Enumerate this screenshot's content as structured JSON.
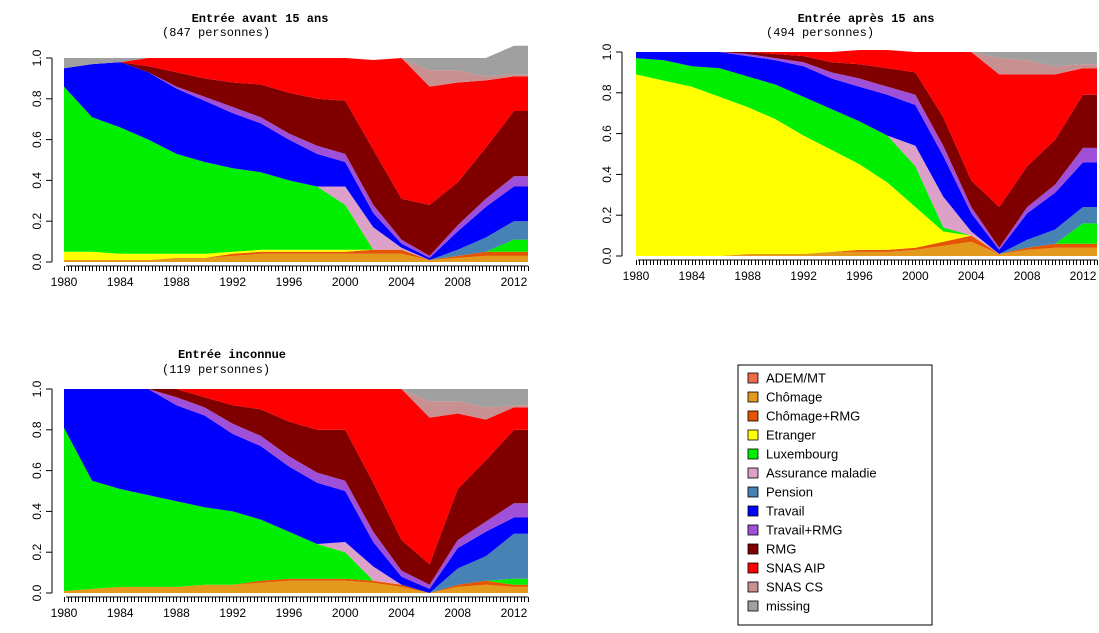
{
  "states": [
    "ADEM/MT",
    "Chômage",
    "Chômage+RMG",
    "Etranger",
    "Luxembourg",
    "Assurance maladie",
    "Pension",
    "Travail",
    "Travail+RMG",
    "RMG",
    "SNAS AIP",
    "SNAS CS",
    "missing"
  ],
  "colors": {
    "ADEM/MT": "#ee6a4a",
    "Chômage": "#e39a1c",
    "Chômage+RMG": "#e55500",
    "Etranger": "#ffff00",
    "Luxembourg": "#00ee00",
    "Assurance maladie": "#dda0c8",
    "Pension": "#4682b4",
    "Travail": "#0000ff",
    "Travail+RMG": "#a050d8",
    "RMG": "#800000",
    "SNAS AIP": "#ff0000",
    "SNAS CS": "#c89090",
    "missing": "#a0a0a0"
  },
  "legend": {
    "items": [
      {
        "label": "ADEM/MT",
        "color": "#ee6a4a"
      },
      {
        "label": "Chômage",
        "color": "#e39a1c"
      },
      {
        "label": "Chômage+RMG",
        "color": "#e55500"
      },
      {
        "label": "Etranger",
        "color": "#ffff00"
      },
      {
        "label": "Luxembourg",
        "color": "#00ee00"
      },
      {
        "label": "Assurance maladie",
        "color": "#dda0c8"
      },
      {
        "label": "Pension",
        "color": "#4682b4"
      },
      {
        "label": "Travail",
        "color": "#0000ff"
      },
      {
        "label": "Travail+RMG",
        "color": "#a050d8"
      },
      {
        "label": "RMG",
        "color": "#800000"
      },
      {
        "label": "SNAS AIP",
        "color": "#ff0000"
      },
      {
        "label": "SNAS CS",
        "color": "#c89090"
      },
      {
        "label": "missing",
        "color": "#a0a0a0"
      }
    ]
  },
  "chart_data": [
    {
      "type": "area",
      "title": "Entrée avant 15 ans",
      "subtitle": "(847 personnes)",
      "xlim": [
        1980,
        2013
      ],
      "ylim": [
        0,
        1
      ],
      "xticks": [
        1980,
        1984,
        1988,
        1992,
        1996,
        2000,
        2004,
        2008,
        2012
      ],
      "yticks": [
        "0.0",
        "0.2",
        "0.4",
        "0.6",
        "0.8",
        "1.0"
      ],
      "x": [
        1980,
        1982,
        1984,
        1986,
        1988,
        1990,
        1992,
        1994,
        1996,
        1998,
        2000,
        2002,
        2004,
        2006,
        2008,
        2010,
        2012,
        2013
      ],
      "series": [
        {
          "name": "ADEM/MT",
          "values": [
            0,
            0,
            0,
            0,
            0,
            0,
            0,
            0,
            0,
            0,
            0,
            0,
            0,
            0,
            0,
            0,
            0,
            0
          ]
        },
        {
          "name": "Chômage",
          "values": [
            0.01,
            0.01,
            0.01,
            0.01,
            0.02,
            0.02,
            0.03,
            0.04,
            0.04,
            0.04,
            0.04,
            0.04,
            0.04,
            0.01,
            0.02,
            0.03,
            0.03,
            0.03
          ]
        },
        {
          "name": "Chômage+RMG",
          "values": [
            0,
            0,
            0,
            0,
            0,
            0,
            0.01,
            0.01,
            0.01,
            0.01,
            0.01,
            0.02,
            0.02,
            0,
            0.01,
            0.02,
            0.02,
            0.02
          ]
        },
        {
          "name": "Etranger",
          "values": [
            0.04,
            0.04,
            0.03,
            0.03,
            0.02,
            0.02,
            0.01,
            0.01,
            0.01,
            0.01,
            0.01,
            0,
            0,
            0,
            0,
            0,
            0,
            0
          ]
        },
        {
          "name": "Luxembourg",
          "values": [
            0.81,
            0.66,
            0.62,
            0.56,
            0.49,
            0.45,
            0.41,
            0.38,
            0.34,
            0.31,
            0.22,
            0,
            0,
            0,
            0,
            0,
            0.06,
            0.06
          ]
        },
        {
          "name": "Assurance maladie",
          "values": [
            0,
            0,
            0,
            0,
            0,
            0,
            0,
            0,
            0,
            0,
            0.09,
            0.11,
            0.01,
            0,
            0,
            0,
            0,
            0
          ]
        },
        {
          "name": "Pension",
          "values": [
            0,
            0,
            0,
            0,
            0,
            0,
            0,
            0,
            0,
            0,
            0,
            0,
            0,
            0,
            0.03,
            0.07,
            0.09,
            0.09
          ]
        },
        {
          "name": "Travail",
          "values": [
            0.09,
            0.26,
            0.32,
            0.33,
            0.32,
            0.3,
            0.27,
            0.24,
            0.2,
            0.16,
            0.12,
            0.07,
            0.02,
            0.01,
            0.09,
            0.15,
            0.17,
            0.17
          ]
        },
        {
          "name": "Travail+RMG",
          "values": [
            0,
            0,
            0,
            0,
            0.01,
            0.02,
            0.03,
            0.03,
            0.03,
            0.04,
            0.04,
            0.04,
            0.02,
            0.01,
            0.03,
            0.04,
            0.05,
            0.05
          ]
        },
        {
          "name": "RMG",
          "values": [
            0,
            0,
            0,
            0.03,
            0.07,
            0.09,
            0.12,
            0.16,
            0.2,
            0.23,
            0.26,
            0.27,
            0.2,
            0.25,
            0.21,
            0.25,
            0.32,
            0.32
          ]
        },
        {
          "name": "SNAS AIP",
          "values": [
            0,
            0,
            0,
            0.04,
            0.07,
            0.1,
            0.12,
            0.13,
            0.17,
            0.2,
            0.21,
            0.44,
            0.69,
            0.58,
            0.49,
            0.33,
            0.17,
            0.17
          ]
        },
        {
          "name": "SNAS CS",
          "values": [
            0,
            0,
            0,
            0,
            0,
            0,
            0,
            0,
            0,
            0,
            0,
            0,
            0,
            0.08,
            0.06,
            0.02,
            0.01,
            0.01
          ]
        },
        {
          "name": "missing",
          "values": [
            0.05,
            0.03,
            0.02,
            0,
            0,
            0,
            0,
            0,
            0,
            0,
            0,
            0,
            0,
            0.06,
            0.06,
            0.09,
            0.14,
            0.14
          ]
        }
      ]
    },
    {
      "type": "area",
      "title": "Entrée après 15 ans",
      "subtitle": "(494 personnes)",
      "xlim": [
        1980,
        2013
      ],
      "ylim": [
        0,
        1
      ],
      "xticks": [
        1980,
        1984,
        1988,
        1992,
        1996,
        2000,
        2004,
        2008,
        2012
      ],
      "yticks": [
        "0.0",
        "0.2",
        "0.4",
        "0.6",
        "0.8",
        "1.0"
      ],
      "x": [
        1980,
        1982,
        1984,
        1986,
        1988,
        1990,
        1992,
        1994,
        1996,
        1998,
        2000,
        2002,
        2004,
        2006,
        2008,
        2010,
        2012,
        2013
      ],
      "series": [
        {
          "name": "ADEM/MT",
          "values": [
            0,
            0,
            0,
            0,
            0,
            0,
            0,
            0,
            0,
            0,
            0,
            0,
            0,
            0,
            0,
            0,
            0,
            0
          ]
        },
        {
          "name": "Chômage",
          "values": [
            0,
            0,
            0,
            0,
            0.01,
            0.01,
            0.01,
            0.02,
            0.02,
            0.02,
            0.03,
            0.05,
            0.07,
            0.01,
            0.03,
            0.04,
            0.04,
            0.04
          ]
        },
        {
          "name": "Chômage+RMG",
          "values": [
            0,
            0,
            0,
            0,
            0,
            0,
            0,
            0,
            0.01,
            0.01,
            0.01,
            0.02,
            0.03,
            0,
            0.01,
            0.02,
            0.02,
            0.02
          ]
        },
        {
          "name": "Etranger",
          "values": [
            0.89,
            0.86,
            0.83,
            0.78,
            0.72,
            0.66,
            0.58,
            0.5,
            0.42,
            0.33,
            0.2,
            0.05,
            0,
            0,
            0,
            0,
            0,
            0
          ]
        },
        {
          "name": "Luxembourg",
          "values": [
            0.08,
            0.1,
            0.1,
            0.14,
            0.15,
            0.17,
            0.19,
            0.2,
            0.21,
            0.23,
            0.2,
            0.02,
            0,
            0,
            0,
            0,
            0.1,
            0.1
          ]
        },
        {
          "name": "Assurance maladie",
          "values": [
            0,
            0,
            0,
            0,
            0,
            0,
            0,
            0,
            0,
            0,
            0.1,
            0.15,
            0.02,
            0,
            0,
            0,
            0,
            0
          ]
        },
        {
          "name": "Pension",
          "values": [
            0,
            0,
            0,
            0,
            0,
            0,
            0,
            0,
            0,
            0,
            0,
            0,
            0,
            0,
            0.04,
            0.07,
            0.08,
            0.08
          ]
        },
        {
          "name": "Travail",
          "values": [
            0.03,
            0.04,
            0.07,
            0.08,
            0.1,
            0.12,
            0.15,
            0.15,
            0.17,
            0.2,
            0.2,
            0.2,
            0.09,
            0.02,
            0.13,
            0.18,
            0.22,
            0.22
          ]
        },
        {
          "name": "Travail+RMG",
          "values": [
            0,
            0,
            0,
            0,
            0.01,
            0.01,
            0.02,
            0.03,
            0.04,
            0.04,
            0.05,
            0.05,
            0.03,
            0.01,
            0.03,
            0.04,
            0.07,
            0.07
          ]
        },
        {
          "name": "RMG",
          "values": [
            0,
            0,
            0,
            0,
            0.01,
            0.02,
            0.03,
            0.05,
            0.07,
            0.09,
            0.11,
            0.14,
            0.13,
            0.2,
            0.2,
            0.22,
            0.26,
            0.26
          ]
        },
        {
          "name": "SNAS AIP",
          "values": [
            0,
            0,
            0,
            0,
            0,
            0.01,
            0.02,
            0.05,
            0.07,
            0.09,
            0.1,
            0.32,
            0.63,
            0.65,
            0.45,
            0.32,
            0.13,
            0.13
          ]
        },
        {
          "name": "SNAS CS",
          "values": [
            0,
            0,
            0,
            0,
            0,
            0,
            0,
            0,
            0,
            0,
            0,
            0,
            0,
            0.08,
            0.07,
            0.04,
            0.02,
            0.02
          ]
        },
        {
          "name": "missing",
          "values": [
            0,
            0,
            0,
            0,
            0,
            0,
            0,
            0,
            0,
            0,
            0,
            0,
            0,
            0.03,
            0.04,
            0.07,
            0.06,
            0.06
          ]
        }
      ]
    },
    {
      "type": "area",
      "title": "Entrée inconnue",
      "subtitle": "(119 personnes)",
      "xlim": [
        1980,
        2013
      ],
      "ylim": [
        0,
        1
      ],
      "xticks": [
        1980,
        1984,
        1988,
        1992,
        1996,
        2000,
        2004,
        2008,
        2012
      ],
      "yticks": [
        "0.0",
        "0.2",
        "0.4",
        "0.6",
        "0.8",
        "1.0"
      ],
      "x": [
        1980,
        1982,
        1984,
        1986,
        1988,
        1990,
        1992,
        1994,
        1996,
        1998,
        2000,
        2002,
        2004,
        2006,
        2008,
        2010,
        2012,
        2013
      ],
      "series": [
        {
          "name": "ADEM/MT",
          "values": [
            0,
            0,
            0,
            0,
            0,
            0,
            0,
            0,
            0,
            0,
            0,
            0,
            0,
            0,
            0,
            0,
            0,
            0
          ]
        },
        {
          "name": "Chômage",
          "values": [
            0.01,
            0.02,
            0.03,
            0.03,
            0.03,
            0.04,
            0.04,
            0.05,
            0.06,
            0.06,
            0.06,
            0.05,
            0.03,
            0,
            0.03,
            0.04,
            0.03,
            0.03
          ]
        },
        {
          "name": "Chômage+RMG",
          "values": [
            0,
            0,
            0,
            0,
            0,
            0,
            0,
            0.01,
            0.01,
            0.01,
            0.01,
            0.01,
            0.01,
            0,
            0.01,
            0.02,
            0.01,
            0.01
          ]
        },
        {
          "name": "Etranger",
          "values": [
            0,
            0,
            0,
            0,
            0,
            0,
            0,
            0,
            0,
            0,
            0,
            0,
            0,
            0,
            0,
            0,
            0,
            0
          ]
        },
        {
          "name": "Luxembourg",
          "values": [
            0.8,
            0.53,
            0.48,
            0.45,
            0.42,
            0.38,
            0.36,
            0.3,
            0.23,
            0.17,
            0.13,
            0,
            0,
            0,
            0,
            0,
            0.03,
            0.03
          ]
        },
        {
          "name": "Assurance maladie",
          "values": [
            0,
            0,
            0,
            0,
            0,
            0,
            0,
            0,
            0,
            0,
            0.05,
            0.07,
            0,
            0,
            0,
            0,
            0,
            0
          ]
        },
        {
          "name": "Pension",
          "values": [
            0,
            0,
            0,
            0,
            0,
            0,
            0,
            0,
            0,
            0,
            0,
            0,
            0,
            0,
            0.08,
            0.12,
            0.22,
            0.22
          ]
        },
        {
          "name": "Travail",
          "values": [
            0.19,
            0.45,
            0.49,
            0.52,
            0.47,
            0.45,
            0.38,
            0.36,
            0.32,
            0.3,
            0.25,
            0.12,
            0.04,
            0.02,
            0.1,
            0.12,
            0.08,
            0.08
          ]
        },
        {
          "name": "Travail+RMG",
          "values": [
            0,
            0,
            0,
            0,
            0.04,
            0.04,
            0.05,
            0.05,
            0.05,
            0.05,
            0.05,
            0.05,
            0.03,
            0.02,
            0.04,
            0.05,
            0.07,
            0.07
          ]
        },
        {
          "name": "RMG",
          "values": [
            0,
            0,
            0,
            0,
            0.04,
            0.05,
            0.09,
            0.13,
            0.17,
            0.21,
            0.25,
            0.24,
            0.15,
            0.1,
            0.25,
            0.3,
            0.36,
            0.36
          ]
        },
        {
          "name": "SNAS AIP",
          "values": [
            0,
            0,
            0,
            0,
            0,
            0.04,
            0.08,
            0.1,
            0.16,
            0.2,
            0.2,
            0.46,
            0.74,
            0.72,
            0.37,
            0.2,
            0.11,
            0.11
          ]
        },
        {
          "name": "SNAS CS",
          "values": [
            0,
            0,
            0,
            0,
            0,
            0,
            0,
            0,
            0,
            0,
            0,
            0,
            0,
            0.08,
            0.06,
            0.06,
            0.01,
            0.01
          ]
        },
        {
          "name": "missing",
          "values": [
            0,
            0,
            0,
            0,
            0,
            0,
            0,
            0,
            0,
            0,
            0,
            0,
            0,
            0.06,
            0.06,
            0.09,
            0.08,
            0.08
          ]
        }
      ]
    }
  ]
}
